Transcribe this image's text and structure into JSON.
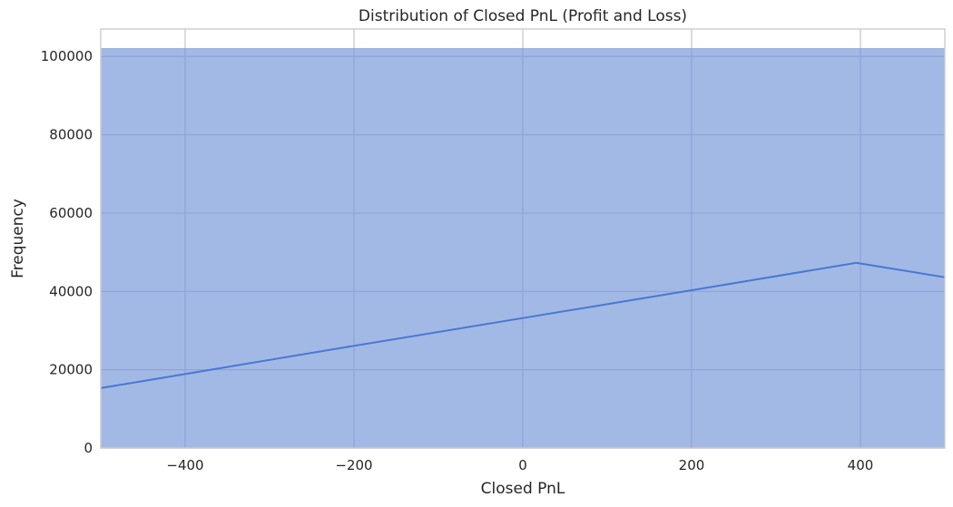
{
  "chart_data": {
    "type": "bar",
    "title": "Distribution of Closed PnL (Profit and Loss)",
    "xlabel": "Closed PnL",
    "ylabel": "Frequency",
    "xlim": [
      -500,
      500
    ],
    "ylim": [
      0,
      107000
    ],
    "xticks": [
      -400,
      -200,
      0,
      200,
      400
    ],
    "yticks": [
      0,
      20000,
      40000,
      60000,
      80000,
      100000
    ],
    "xtick_labels": [
      "−400",
      "−200",
      "0",
      "200",
      "400"
    ],
    "ytick_labels": [
      "0",
      "20000",
      "40000",
      "60000",
      "80000",
      "100000"
    ],
    "grid": true,
    "histogram": {
      "bin_range": [
        -500,
        500
      ],
      "count": 102000,
      "fill_color": "#a2b9e6"
    },
    "kde_line": {
      "x": [
        -500,
        -400,
        -200,
        0,
        200,
        395,
        500
      ],
      "y": [
        15300,
        18900,
        26100,
        33200,
        40300,
        47300,
        43600
      ],
      "color": "#4878d0"
    },
    "colors": {
      "axis": "#cccccc",
      "grid": "#cccccc",
      "background": "#ffffff"
    }
  }
}
